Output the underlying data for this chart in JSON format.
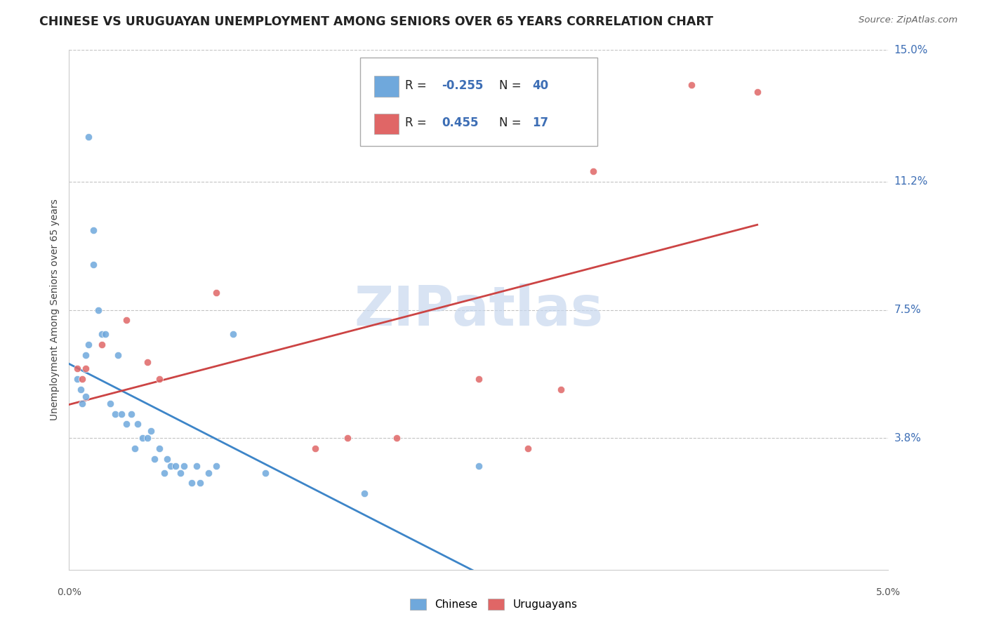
{
  "title": "CHINESE VS URUGUAYAN UNEMPLOYMENT AMONG SENIORS OVER 65 YEARS CORRELATION CHART",
  "source": "Source: ZipAtlas.com",
  "ylabel": "Unemployment Among Seniors over 65 years",
  "xlim": [
    0.0,
    5.0
  ],
  "ylim": [
    0.0,
    15.0
  ],
  "ytick_vals": [
    3.8,
    7.5,
    11.2,
    15.0
  ],
  "ytick_labels": [
    "3.8%",
    "7.5%",
    "11.2%",
    "15.0%"
  ],
  "chinese_color": "#6fa8dc",
  "uruguayan_color": "#e06666",
  "line_chinese_color": "#3d85c8",
  "line_uruguayan_color": "#cc4444",
  "watermark_color": "#c8d8ee",
  "chinese_x": [
    0.05,
    0.07,
    0.08,
    0.1,
    0.1,
    0.12,
    0.12,
    0.15,
    0.15,
    0.18,
    0.2,
    0.22,
    0.25,
    0.28,
    0.3,
    0.32,
    0.35,
    0.38,
    0.4,
    0.42,
    0.45,
    0.48,
    0.5,
    0.52,
    0.55,
    0.58,
    0.6,
    0.62,
    0.65,
    0.68,
    0.7,
    0.75,
    0.78,
    0.8,
    0.85,
    0.9,
    1.0,
    1.2,
    1.8,
    2.5
  ],
  "chinese_y": [
    5.5,
    5.2,
    4.8,
    5.0,
    6.2,
    6.5,
    12.5,
    9.8,
    8.8,
    7.5,
    6.8,
    6.8,
    4.8,
    4.5,
    6.2,
    4.5,
    4.2,
    4.5,
    3.5,
    4.2,
    3.8,
    3.8,
    4.0,
    3.2,
    3.5,
    2.8,
    3.2,
    3.0,
    3.0,
    2.8,
    3.0,
    2.5,
    3.0,
    2.5,
    2.8,
    3.0,
    6.8,
    2.8,
    2.2,
    3.0
  ],
  "uruguayan_x": [
    0.05,
    0.08,
    0.1,
    0.2,
    0.35,
    0.48,
    0.55,
    0.9,
    1.5,
    1.7,
    2.0,
    2.5,
    2.8,
    3.0,
    3.2,
    3.8,
    4.2
  ],
  "uruguayan_y": [
    5.8,
    5.5,
    5.8,
    6.5,
    7.2,
    6.0,
    5.5,
    8.0,
    3.5,
    3.8,
    3.8,
    5.5,
    3.5,
    5.2,
    11.5,
    14.0,
    13.8
  ],
  "line_chinese_slope": -0.62,
  "line_chinese_intercept": 6.0,
  "line_uruguayan_slope": 1.55,
  "line_uruguayan_intercept": 4.2
}
